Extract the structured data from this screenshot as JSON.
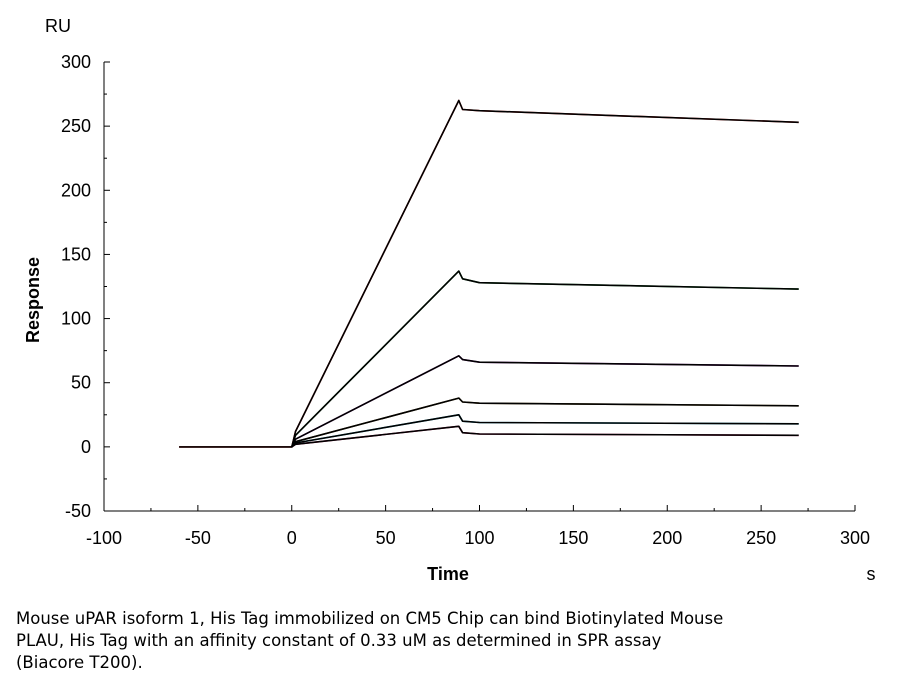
{
  "chart_data": {
    "type": "line",
    "title": "",
    "xlabel": "Time",
    "ylabel": "Response",
    "x_unit": "s",
    "y_unit": "RU",
    "xlim": [
      -100,
      300
    ],
    "ylim": [
      -50,
      300
    ],
    "x_ticks": [
      "-100",
      "-50",
      "0",
      "50",
      "100",
      "150",
      "200",
      "250",
      "300"
    ],
    "y_ticks": [
      "300",
      "250",
      "200",
      "150",
      "100",
      "50",
      "0",
      "-50"
    ],
    "grid": false,
    "legend": "none",
    "series": [
      {
        "color": "#e53935",
        "x": [
          -60,
          0,
          2,
          89,
          91,
          100,
          270
        ],
        "y": [
          0,
          0,
          12,
          270,
          263,
          262,
          253
        ]
      },
      {
        "color": "#2ea043",
        "x": [
          0,
          2,
          89,
          91,
          100,
          270
        ],
        "y": [
          0,
          9,
          137,
          131,
          128,
          123
        ]
      },
      {
        "color": "#9c27b0",
        "x": [
          0,
          2,
          89,
          91,
          100,
          270
        ],
        "y": [
          0,
          6,
          71,
          68,
          66,
          63
        ]
      },
      {
        "color": "#8b6f2a",
        "x": [
          0,
          2,
          89,
          91,
          100,
          270
        ],
        "y": [
          0,
          4,
          38,
          35,
          34,
          32
        ]
      },
      {
        "color": "#17a9c7",
        "x": [
          0,
          2,
          89,
          91,
          100,
          270
        ],
        "y": [
          0,
          3,
          25,
          20,
          19,
          18
        ]
      },
      {
        "color": "#c2185b",
        "x": [
          0,
          2,
          89,
          91,
          100,
          270
        ],
        "y": [
          0,
          2,
          16,
          11,
          10,
          9
        ]
      }
    ],
    "fit_color": "#000000"
  },
  "caption": {
    "lines": [
      "Mouse uPAR isoform 1, His Tag immobilized on CM5 Chip can bind Biotinylated Mouse",
      "PLAU, His Tag with an affinity constant of 0.33 uM as determined in SPR assay",
      "(Biacore T200)."
    ]
  }
}
